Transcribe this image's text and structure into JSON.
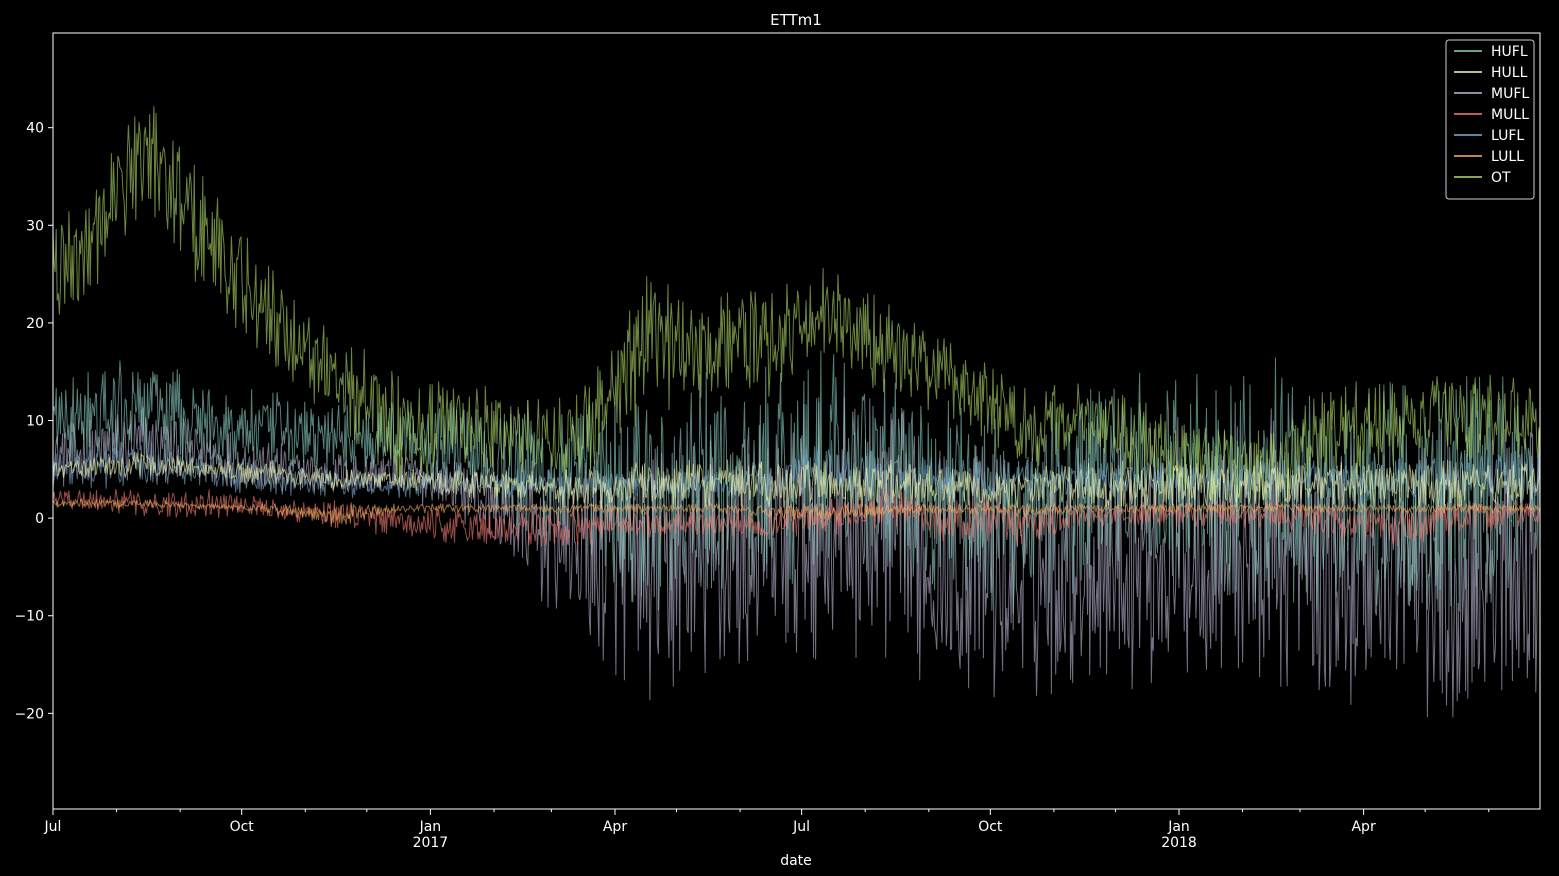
{
  "chart_data": {
    "type": "line",
    "title": "ETTm1",
    "xlabel": "date",
    "ylabel": "",
    "x_range": [
      "2016-07-01",
      "2018-06-26"
    ],
    "ylim": [
      -29.8,
      49.7
    ],
    "y_ticks": [
      40,
      30,
      20,
      10,
      0,
      -10,
      -20
    ],
    "y_tick_labels": [
      "40",
      "30",
      "20",
      "10",
      "0",
      "−10",
      "−20"
    ],
    "x_ticks": [
      {
        "date": "2016-07-01",
        "label": "Jul",
        "sublabel": ""
      },
      {
        "date": "2016-10-01",
        "label": "Oct",
        "sublabel": ""
      },
      {
        "date": "2017-01-01",
        "label": "Jan",
        "sublabel": "2017"
      },
      {
        "date": "2017-04-01",
        "label": "Apr",
        "sublabel": ""
      },
      {
        "date": "2017-07-01",
        "label": "Jul",
        "sublabel": ""
      },
      {
        "date": "2017-10-01",
        "label": "Oct",
        "sublabel": ""
      },
      {
        "date": "2018-01-01",
        "label": "Jan",
        "sublabel": "2018"
      },
      {
        "date": "2018-04-01",
        "label": "Apr",
        "sublabel": ""
      }
    ],
    "grid": false,
    "legend_position": "top-right",
    "background": "#000000",
    "foreground": "#ffffff",
    "series": [
      {
        "name": "HUFL",
        "color": "#8dd3c7",
        "x": [
          "2016-07",
          "2016-08",
          "2016-09",
          "2016-10",
          "2016-11",
          "2016-12",
          "2017-01",
          "2017-02",
          "2017-03",
          "2017-04",
          "2017-05",
          "2017-06",
          "2017-07",
          "2017-08",
          "2017-09",
          "2017-10",
          "2017-11",
          "2017-12",
          "2018-01",
          "2018-02",
          "2018-03",
          "2018-04",
          "2018-05",
          "2018-06"
        ],
        "upper": [
          15,
          17,
          14,
          13,
          12,
          12,
          13,
          13,
          12,
          13,
          15,
          16,
          18,
          15,
          12,
          11,
          14,
          15,
          16,
          17,
          13,
          15,
          15,
          15
        ],
        "lower": [
          5,
          6,
          5,
          5,
          4,
          5,
          3,
          -3,
          -6,
          -10,
          -9,
          -8,
          -5,
          -7,
          -9,
          -10,
          -8,
          -9,
          -8,
          -9,
          -10,
          -9,
          -10,
          -8
        ]
      },
      {
        "name": "HULL",
        "color": "#feffb3",
        "x": [
          "2016-07",
          "2016-08",
          "2016-09",
          "2016-10",
          "2016-11",
          "2016-12",
          "2017-01",
          "2017-02",
          "2017-03",
          "2017-04",
          "2017-05",
          "2017-06",
          "2017-07",
          "2017-08",
          "2017-09",
          "2017-10",
          "2017-11",
          "2017-12",
          "2018-01",
          "2018-02",
          "2018-03",
          "2018-04",
          "2018-05",
          "2018-06"
        ],
        "upper": [
          6,
          7,
          6,
          6,
          5,
          5,
          5,
          5,
          5,
          6,
          6,
          6,
          6,
          6,
          5,
          5,
          6,
          6,
          6,
          6,
          6,
          6,
          6,
          6
        ],
        "lower": [
          4,
          4,
          4,
          3,
          3,
          3,
          2,
          2,
          1,
          1,
          1,
          1,
          1,
          1,
          1,
          1,
          1,
          1,
          1,
          1,
          1,
          1,
          1,
          1
        ]
      },
      {
        "name": "MUFL",
        "color": "#bfbbd9",
        "x": [
          "2016-07",
          "2016-08",
          "2016-09",
          "2016-10",
          "2016-11",
          "2016-12",
          "2017-01",
          "2017-02",
          "2017-03",
          "2017-04",
          "2017-05",
          "2017-06",
          "2017-07",
          "2017-08",
          "2017-09",
          "2017-10",
          "2017-11",
          "2017-12",
          "2018-01",
          "2018-02",
          "2018-03",
          "2018-04",
          "2018-05",
          "2018-06"
        ],
        "upper": [
          10,
          12,
          10,
          8,
          7,
          7,
          7,
          6,
          6,
          7,
          9,
          10,
          13,
          12,
          8,
          8,
          9,
          10,
          11,
          12,
          8,
          9,
          10,
          9
        ],
        "lower": [
          3,
          3,
          3,
          2,
          2,
          2,
          0,
          -7,
          -13,
          -19,
          -18,
          -16,
          -14,
          -16,
          -18,
          -20,
          -17,
          -18,
          -17,
          -18,
          -20,
          -20,
          -22,
          -18
        ]
      },
      {
        "name": "MULL",
        "color": "#fa8174",
        "x": [
          "2016-07",
          "2016-08",
          "2016-09",
          "2016-10",
          "2016-11",
          "2016-12",
          "2017-01",
          "2017-02",
          "2017-03",
          "2017-04",
          "2017-05",
          "2017-06",
          "2017-07",
          "2017-08",
          "2017-09",
          "2017-10",
          "2017-11",
          "2017-12",
          "2018-01",
          "2018-02",
          "2018-03",
          "2018-04",
          "2018-05",
          "2018-06"
        ],
        "upper": [
          3,
          3,
          3,
          2,
          2,
          1,
          1,
          1,
          1,
          1,
          1,
          1,
          2,
          3,
          2,
          2,
          1,
          2,
          2,
          2,
          1,
          1,
          2,
          2
        ],
        "lower": [
          1,
          0,
          0,
          0,
          -1,
          -2,
          -3,
          -3,
          -3,
          -2,
          -2,
          -2,
          -2,
          -1,
          -3,
          -3,
          -1,
          -1,
          -1,
          -1,
          -2,
          -3,
          -2,
          -1
        ]
      },
      {
        "name": "LUFL",
        "color": "#81b1d2",
        "x": [
          "2016-07",
          "2016-08",
          "2016-09",
          "2016-10",
          "2016-11",
          "2016-12",
          "2017-01",
          "2017-02",
          "2017-03",
          "2017-04",
          "2017-05",
          "2017-06",
          "2017-07",
          "2017-08",
          "2017-09",
          "2017-10",
          "2017-11",
          "2017-12",
          "2018-01",
          "2018-02",
          "2018-03",
          "2018-04",
          "2018-05",
          "2018-06"
        ],
        "upper": [
          7,
          8,
          7,
          6,
          5,
          5,
          5,
          5,
          5,
          5,
          5,
          6,
          8,
          7,
          6,
          6,
          6,
          6,
          6,
          6,
          6,
          6,
          7,
          7
        ],
        "lower": [
          3,
          3,
          3,
          2,
          2,
          2,
          2,
          2,
          2,
          2,
          2,
          2,
          2,
          2,
          2,
          2,
          2,
          2,
          2,
          2,
          2,
          2,
          2,
          2
        ]
      },
      {
        "name": "LULL",
        "color": "#fdb462",
        "x": [
          "2016-07",
          "2016-08",
          "2016-09",
          "2016-10",
          "2016-11",
          "2016-12",
          "2017-01",
          "2017-02",
          "2017-03",
          "2017-04",
          "2017-05",
          "2017-06",
          "2017-07",
          "2017-08",
          "2017-09",
          "2017-10",
          "2017-11",
          "2017-12",
          "2018-01",
          "2018-02",
          "2018-03",
          "2018-04",
          "2018-05",
          "2018-06"
        ],
        "upper": [
          2,
          2,
          1.5,
          1.5,
          1.5,
          1.5,
          1.5,
          1.5,
          1.5,
          1.5,
          1.5,
          1.5,
          1.5,
          1.5,
          1.5,
          1.5,
          1.5,
          1.5,
          1.5,
          1.5,
          1.5,
          1.5,
          1.5,
          1.5
        ],
        "lower": [
          1,
          1,
          1,
          0.5,
          -1,
          0.5,
          0.5,
          0.5,
          0.5,
          0.5,
          0.5,
          0,
          -0.5,
          0.5,
          0.5,
          0,
          0.5,
          0.5,
          0.5,
          0.5,
          0.5,
          0.5,
          0.5,
          0.5
        ]
      },
      {
        "name": "OT",
        "color": "#b3de69",
        "x": [
          "2016-07",
          "2016-08",
          "2016-09",
          "2016-10",
          "2016-11",
          "2016-12",
          "2017-01",
          "2017-02",
          "2017-03",
          "2017-04",
          "2017-05",
          "2017-06",
          "2017-07",
          "2017-08",
          "2017-09",
          "2017-10",
          "2017-11",
          "2017-12",
          "2018-01",
          "2018-02",
          "2018-03",
          "2018-04",
          "2018-05",
          "2018-06"
        ],
        "upper": [
          33,
          44,
          35,
          26,
          20,
          15,
          14,
          13,
          13,
          25,
          24,
          24,
          26,
          22,
          18,
          14,
          14,
          12,
          10,
          9,
          14,
          14,
          15,
          15
        ],
        "lower": [
          20,
          32,
          22,
          15,
          10,
          3,
          5,
          4,
          4,
          10,
          12,
          12,
          16,
          12,
          10,
          5,
          6,
          3,
          2,
          1,
          3,
          5,
          6,
          6
        ]
      }
    ]
  }
}
